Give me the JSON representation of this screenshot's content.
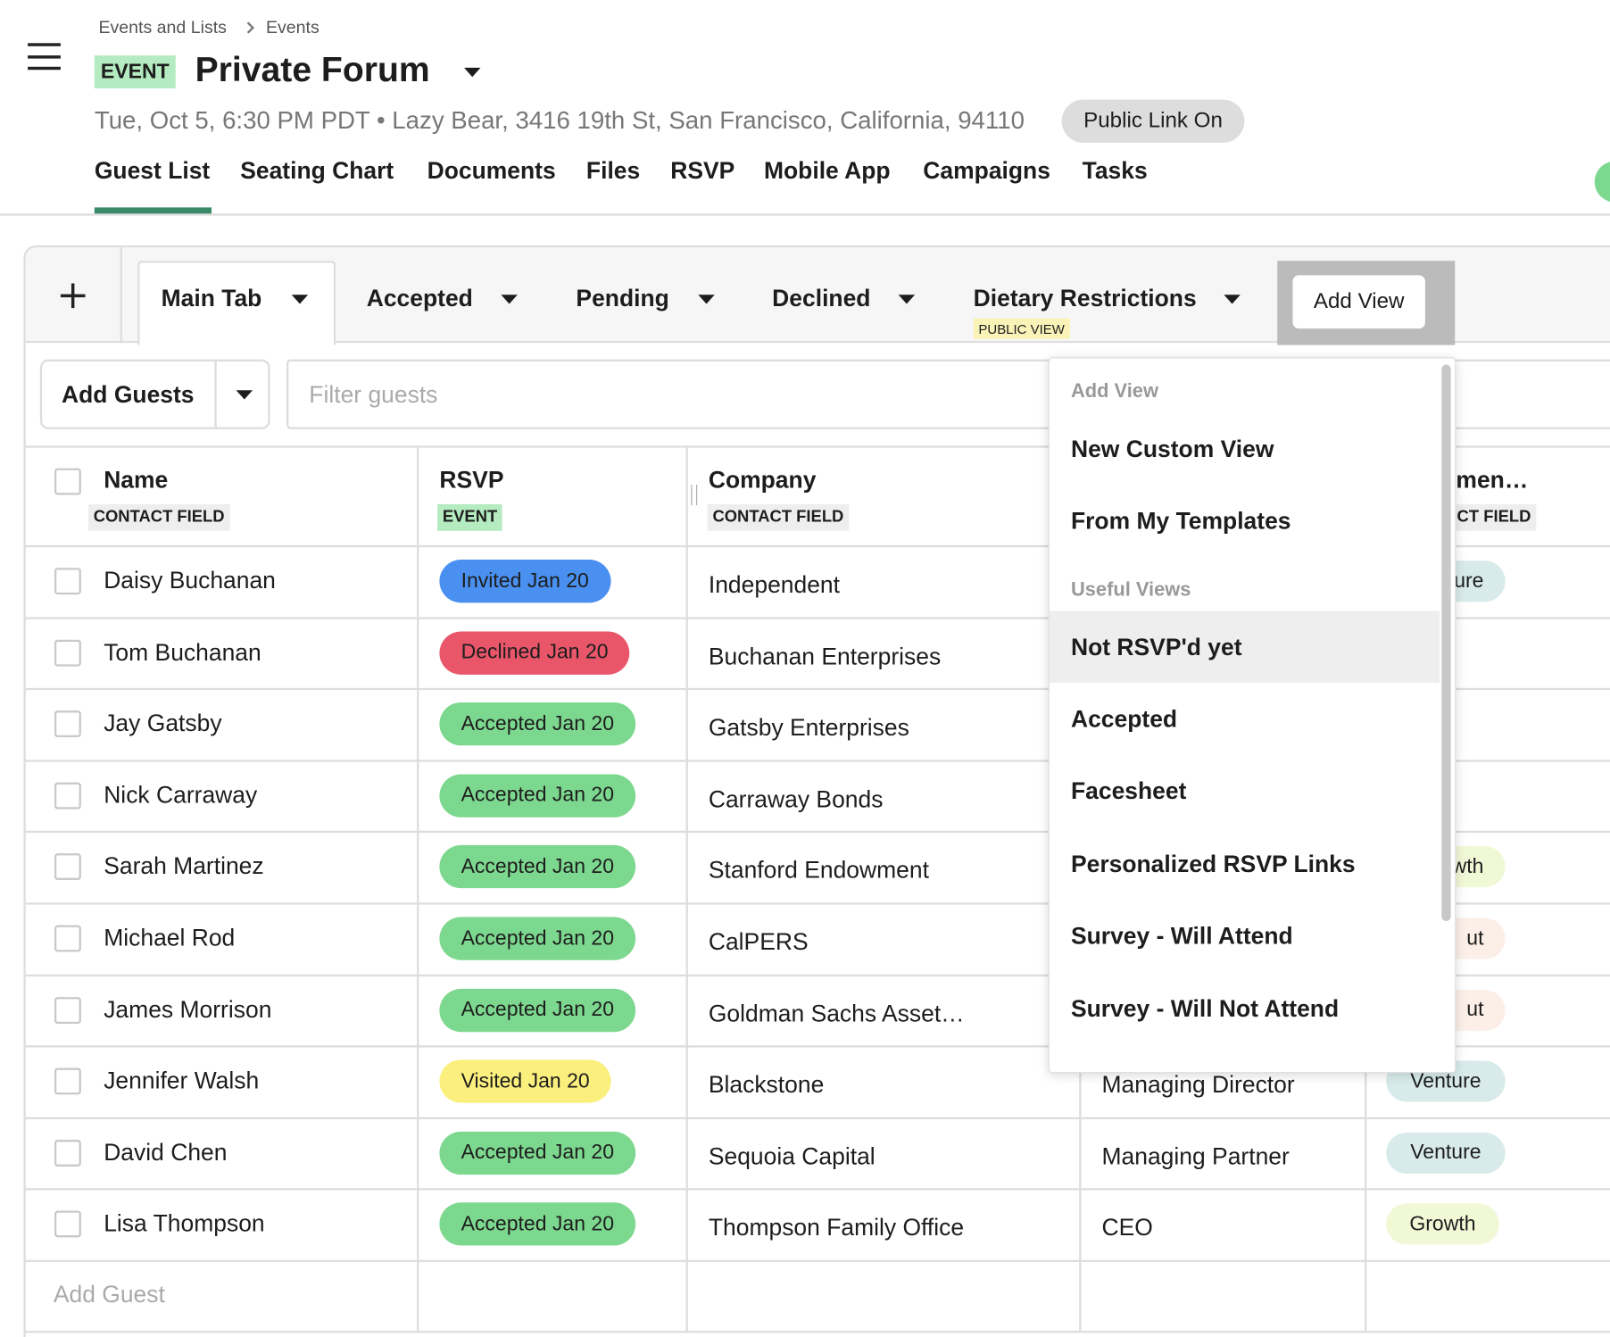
{
  "breadcrumb": [
    "Events and Lists",
    "Events"
  ],
  "header": {
    "badge": "EVENT",
    "title": "Private Forum",
    "details": "Tue, Oct 5, 6:30 PM PDT • Lazy Bear, 3416 19th St, San Francisco, California, 94110",
    "public_link": "Public Link On"
  },
  "nav_tabs": [
    "Guest List",
    "Seating Chart",
    "Documents",
    "Files",
    "RSVP",
    "Mobile App",
    "Campaigns",
    "Tasks"
  ],
  "active_nav": 0,
  "views": {
    "tabs": [
      {
        "label": "Main Tab"
      },
      {
        "label": "Accepted"
      },
      {
        "label": "Pending"
      },
      {
        "label": "Declined"
      },
      {
        "label": "Dietary Restrictions",
        "badge": "PUBLIC VIEW"
      }
    ],
    "add_view": "Add View"
  },
  "toolbar": {
    "add_guests": "Add Guests",
    "filter_placeholder": "Filter guests"
  },
  "table": {
    "columns": [
      {
        "label": "Name",
        "sub": "CONTACT FIELD"
      },
      {
        "label": "RSVP",
        "sub": "EVENT"
      },
      {
        "label": "Company",
        "sub": "CONTACT FIELD"
      },
      {
        "label": "men…",
        "sub": "CT FIELD"
      }
    ],
    "rows": [
      {
        "name": "Daisy Buchanan",
        "rsvp": "Invited Jan 20",
        "rsvp_color": "#4a90f0",
        "company": "Independent",
        "title": null,
        "tag": "ure",
        "tag_color": "#d8ebea"
      },
      {
        "name": "Tom Buchanan",
        "rsvp": "Declined Jan 20",
        "rsvp_color": "#e9566a",
        "company": "Buchanan Enterprises",
        "title": null,
        "tag": null,
        "tag_color": null
      },
      {
        "name": "Jay Gatsby",
        "rsvp": "Accepted Jan 20",
        "rsvp_color": "#7dd88f",
        "company": "Gatsby Enterprises",
        "title": null,
        "tag": null,
        "tag_color": null
      },
      {
        "name": "Nick Carraway",
        "rsvp": "Accepted Jan 20",
        "rsvp_color": "#7dd88f",
        "company": "Carraway Bonds",
        "title": null,
        "tag": null,
        "tag_color": null
      },
      {
        "name": "Sarah Martinez",
        "rsvp": "Accepted Jan 20",
        "rsvp_color": "#7dd88f",
        "company": "Stanford Endowment",
        "title": null,
        "tag": "wth",
        "tag_color": "#f1f8d6"
      },
      {
        "name": "Michael Rod",
        "rsvp": "Accepted Jan 20",
        "rsvp_color": "#7dd88f",
        "company": "CalPERS",
        "title": null,
        "tag": "ut",
        "tag_color": "#fbefe8"
      },
      {
        "name": "James Morrison",
        "rsvp": "Accepted Jan 20",
        "rsvp_color": "#7dd88f",
        "company": "Goldman Sachs Asset…",
        "title": null,
        "tag": "ut",
        "tag_color": "#fbefe8"
      },
      {
        "name": "Jennifer Walsh",
        "rsvp": "Visited Jan 20",
        "rsvp_color": "#fbef7d",
        "company": "Blackstone",
        "title": "Managing Director",
        "tag": "Venture",
        "tag_color": "#d8ebea"
      },
      {
        "name": "David Chen",
        "rsvp": "Accepted Jan 20",
        "rsvp_color": "#7dd88f",
        "company": "Sequoia Capital",
        "title": "Managing Partner",
        "tag": "Venture",
        "tag_color": "#d8ebea"
      },
      {
        "name": "Lisa Thompson",
        "rsvp": "Accepted Jan 20",
        "rsvp_color": "#7dd88f",
        "company": "Thompson Family Office",
        "title": "CEO",
        "tag": "Growth",
        "tag_color": "#f1f8d6"
      }
    ],
    "add_guest": "Add Guest"
  },
  "dropdown": {
    "title": "Add View",
    "items": [
      "New Custom View",
      "From My Templates"
    ],
    "section": "Useful Views",
    "useful": [
      "Not RSVP'd yet",
      "Accepted",
      "Facesheet",
      "Personalized RSVP Links",
      "Survey - Will Attend",
      "Survey - Will Not Attend"
    ],
    "highlighted": 0
  }
}
